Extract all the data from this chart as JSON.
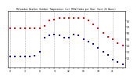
{
  "title": "Milwaukee Weather Outdoor Temperature (vs) THSW Index per Hour (Last 24 Hours)",
  "red_y": [
    68,
    68,
    68,
    68,
    68,
    68,
    68,
    72,
    80,
    82,
    84,
    84,
    84,
    84,
    84,
    84,
    80,
    74,
    68,
    60,
    54,
    50,
    44,
    40
  ],
  "blue_y": [
    22,
    22,
    22,
    22,
    22,
    24,
    30,
    52,
    56,
    58,
    56,
    52,
    52,
    58,
    56,
    50,
    46,
    42,
    36,
    30,
    25,
    18,
    14,
    10
  ],
  "x": [
    0,
    1,
    2,
    3,
    4,
    5,
    6,
    7,
    8,
    9,
    10,
    11,
    12,
    13,
    14,
    15,
    16,
    17,
    18,
    19,
    20,
    21,
    22,
    23
  ],
  "ylim": [
    5,
    95
  ],
  "xlim": [
    -0.5,
    23.5
  ],
  "red_color": "#ff0000",
  "blue_color": "#0000cc",
  "bg_color": "#ffffff",
  "grid_color": "#b0b0b0",
  "ytick_labels": [
    "80",
    "70",
    "60",
    "50",
    "40",
    "30",
    "20"
  ],
  "ytick_vals": [
    80,
    70,
    60,
    50,
    40,
    30,
    20
  ],
  "vline_positions": [
    0,
    3,
    6,
    9,
    12,
    15,
    18,
    21
  ],
  "marker_size": 1.8,
  "linewidth": 0.0
}
